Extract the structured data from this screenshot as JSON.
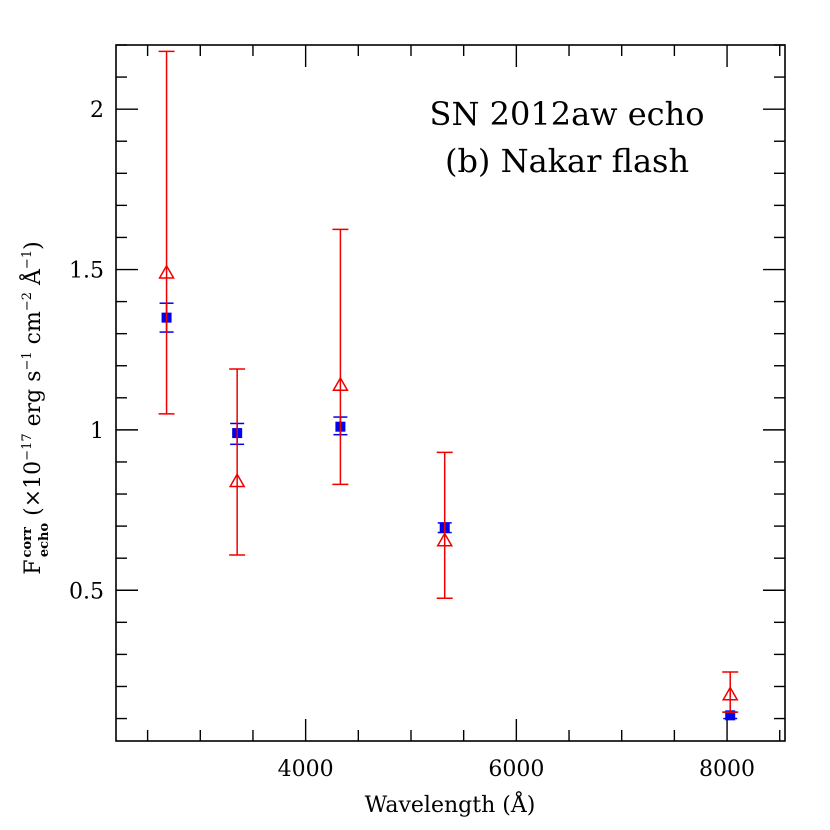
{
  "chart_data": {
    "type": "scatter",
    "title": "",
    "annotations": [
      "SN 2012aw echo",
      "(b) Nakar flash"
    ],
    "xlabel": "Wavelength (Å)",
    "ylabel": {
      "symbol": "F",
      "sup": "corr",
      "sub": "echo",
      "rest": " (×10",
      "exp1": "−17",
      "unit1": " erg s",
      "exp2": "−1",
      "unit2": " cm",
      "exp3": "−2",
      "unit3": " Å",
      "exp4": "−1",
      "close": ")"
    },
    "xlim": [
      2200,
      8550
    ],
    "ylim": [
      0.03,
      2.2
    ],
    "x_ticks": [
      4000,
      6000,
      8000
    ],
    "x_tick_labels": [
      "4000",
      "6000",
      "8000"
    ],
    "x_minor_step": 500,
    "y_ticks": [
      0.5,
      1,
      1.5,
      2
    ],
    "y_tick_labels": [
      "0.5",
      "1",
      "1.5",
      "2"
    ],
    "y_minor_step": 0.1,
    "grid": false,
    "series": [
      {
        "marker": "square",
        "color": "#0000ee",
        "points": [
          {
            "x": 2680,
            "y": 1.35,
            "ylo": 1.305,
            "yhi": 1.395
          },
          {
            "x": 3350,
            "y": 0.99,
            "ylo": 0.955,
            "yhi": 1.02
          },
          {
            "x": 4330,
            "y": 1.01,
            "ylo": 0.985,
            "yhi": 1.04
          },
          {
            "x": 5320,
            "y": 0.695,
            "ylo": 0.68,
            "yhi": 0.71
          },
          {
            "x": 8030,
            "y": 0.11,
            "ylo": 0.1,
            "yhi": 0.12
          }
        ]
      },
      {
        "marker": "triangle-open",
        "color": "#ee0000",
        "points": [
          {
            "x": 2680,
            "y": 1.49,
            "ylo": 1.05,
            "yhi": 2.18
          },
          {
            "x": 3350,
            "y": 0.84,
            "ylo": 0.61,
            "yhi": 1.19
          },
          {
            "x": 4330,
            "y": 1.14,
            "ylo": 0.83,
            "yhi": 1.625
          },
          {
            "x": 5320,
            "y": 0.655,
            "ylo": 0.475,
            "yhi": 0.93
          },
          {
            "x": 8030,
            "y": 0.175,
            "ylo": 0.12,
            "yhi": 0.245
          }
        ]
      }
    ]
  }
}
